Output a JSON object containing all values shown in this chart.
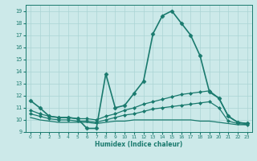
{
  "title": "",
  "xlabel": "Humidex (Indice chaleur)",
  "xlim": [
    -0.5,
    23.5
  ],
  "ylim": [
    9,
    19.5
  ],
  "yticks": [
    9,
    10,
    11,
    12,
    13,
    14,
    15,
    16,
    17,
    18,
    19
  ],
  "xticks": [
    0,
    1,
    2,
    3,
    4,
    5,
    6,
    7,
    8,
    9,
    10,
    11,
    12,
    13,
    14,
    15,
    16,
    17,
    18,
    19,
    20,
    21,
    22,
    23
  ],
  "background_color": "#cce9e9",
  "grid_color": "#aad4d4",
  "line_color": "#1a7a6e",
  "lines": [
    {
      "x": [
        0,
        1,
        2,
        3,
        4,
        5,
        6,
        7,
        8,
        9,
        10,
        11,
        12,
        13,
        14,
        15,
        16,
        17,
        18,
        19,
        20,
        21,
        22,
        23
      ],
      "y": [
        11.6,
        11.0,
        10.3,
        10.2,
        10.2,
        10.1,
        9.3,
        9.3,
        13.8,
        11.0,
        11.2,
        12.2,
        13.2,
        17.1,
        18.6,
        19.0,
        18.0,
        17.0,
        15.3,
        12.3,
        11.8,
        10.3,
        9.8,
        9.7
      ],
      "marker": "D",
      "markersize": 2.5,
      "linewidth": 1.2
    },
    {
      "x": [
        0,
        1,
        2,
        3,
        4,
        5,
        6,
        7,
        8,
        9,
        10,
        11,
        12,
        13,
        14,
        15,
        16,
        17,
        18,
        19,
        20,
        21,
        22,
        23
      ],
      "y": [
        10.8,
        10.5,
        10.3,
        10.2,
        10.2,
        10.1,
        10.1,
        10.0,
        10.3,
        10.5,
        10.8,
        11.0,
        11.3,
        11.5,
        11.7,
        11.9,
        12.1,
        12.2,
        12.3,
        12.4,
        11.8,
        10.3,
        9.8,
        9.7
      ],
      "marker": "D",
      "markersize": 2.0,
      "linewidth": 0.9
    },
    {
      "x": [
        0,
        1,
        2,
        3,
        4,
        5,
        6,
        7,
        8,
        9,
        10,
        11,
        12,
        13,
        14,
        15,
        16,
        17,
        18,
        19,
        20,
        21,
        22,
        23
      ],
      "y": [
        10.5,
        10.3,
        10.1,
        10.0,
        10.0,
        9.9,
        9.9,
        9.8,
        10.0,
        10.2,
        10.4,
        10.5,
        10.7,
        10.9,
        11.0,
        11.1,
        11.2,
        11.3,
        11.4,
        11.5,
        11.0,
        9.9,
        9.7,
        9.6
      ],
      "marker": "D",
      "markersize": 2.0,
      "linewidth": 0.9
    },
    {
      "x": [
        0,
        1,
        2,
        3,
        4,
        5,
        6,
        7,
        8,
        9,
        10,
        11,
        12,
        13,
        14,
        15,
        16,
        17,
        18,
        19,
        20,
        21,
        22,
        23
      ],
      "y": [
        10.2,
        10.0,
        9.9,
        9.8,
        9.8,
        9.8,
        9.8,
        9.7,
        9.8,
        9.9,
        9.9,
        10.0,
        10.0,
        10.0,
        10.0,
        10.0,
        10.0,
        10.0,
        9.9,
        9.9,
        9.8,
        9.7,
        9.6,
        9.6
      ],
      "marker": null,
      "markersize": 0,
      "linewidth": 0.9
    }
  ]
}
